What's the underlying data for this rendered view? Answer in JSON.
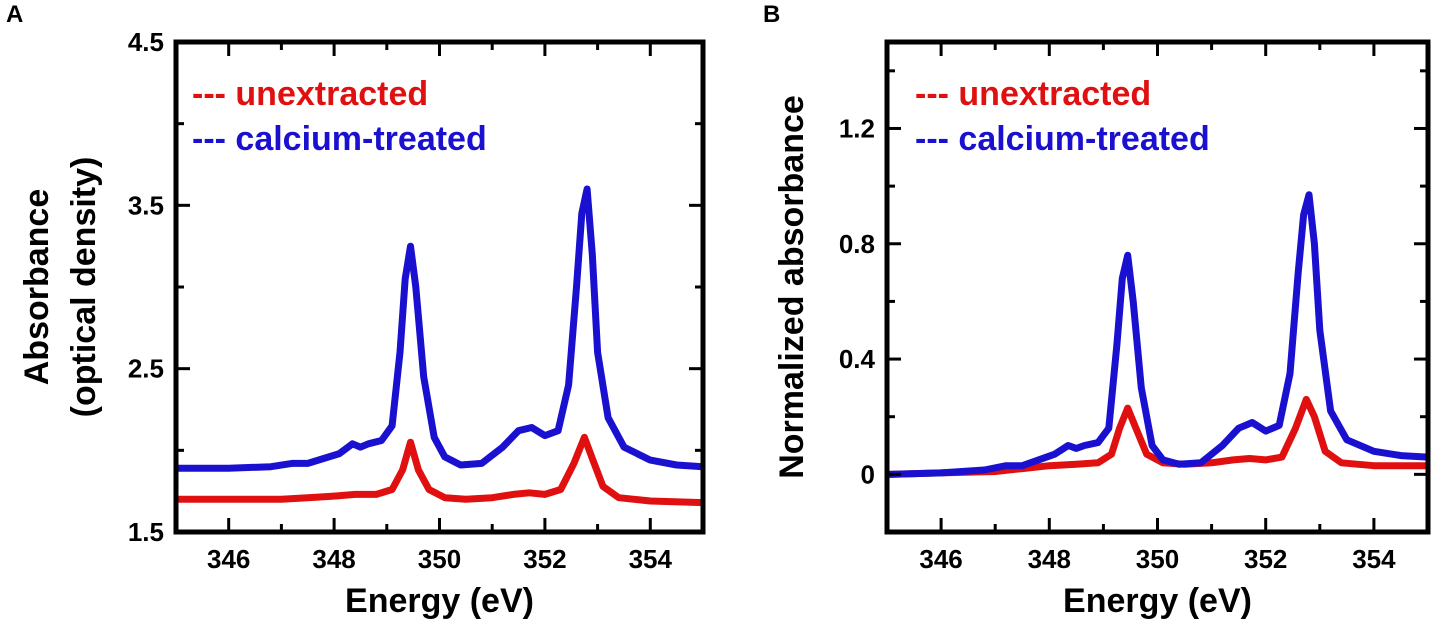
{
  "chart_data": [
    {
      "panel": "A",
      "type": "line",
      "xlabel": "Energy (eV)",
      "ylabel_lines": [
        "Absorbance",
        "(optical density)"
      ],
      "xlim": [
        345,
        355
      ],
      "ylim": [
        1.5,
        4.5
      ],
      "xticks": [
        346,
        348,
        350,
        352,
        354
      ],
      "xtick_labels": [
        "346",
        "348",
        "350",
        "352",
        "354"
      ],
      "yticks": [
        1.5,
        2.5,
        3.5,
        4.5
      ],
      "ytick_labels": [
        "1.5",
        "2.5",
        "3.5",
        "4.5"
      ],
      "grid": false,
      "legend_position": "top-left",
      "series": [
        {
          "name": "unextracted",
          "legend_label": "--- unextracted",
          "color": "#e01010",
          "x": [
            345,
            346,
            347,
            347.5,
            348,
            348.4,
            348.8,
            349.1,
            349.3,
            349.45,
            349.6,
            349.8,
            350.1,
            350.5,
            351,
            351.4,
            351.7,
            352.0,
            352.3,
            352.55,
            352.75,
            352.9,
            353.1,
            353.4,
            354,
            355
          ],
          "values": [
            1.7,
            1.7,
            1.7,
            1.71,
            1.72,
            1.73,
            1.73,
            1.76,
            1.88,
            2.05,
            1.88,
            1.76,
            1.71,
            1.7,
            1.71,
            1.73,
            1.74,
            1.73,
            1.76,
            1.92,
            2.08,
            1.95,
            1.78,
            1.71,
            1.69,
            1.68
          ]
        },
        {
          "name": "calcium-treated",
          "legend_label": "--- calcium-treated",
          "color": "#1a10d0",
          "x": [
            345,
            346,
            346.8,
            347.2,
            347.5,
            347.8,
            348.1,
            348.35,
            348.5,
            348.65,
            348.9,
            349.1,
            349.25,
            349.35,
            349.45,
            349.55,
            349.7,
            349.9,
            350.1,
            350.4,
            350.8,
            351.2,
            351.5,
            351.75,
            352.0,
            352.25,
            352.45,
            352.6,
            352.7,
            352.8,
            352.9,
            353.0,
            353.2,
            353.5,
            354,
            354.5,
            355
          ],
          "values": [
            1.89,
            1.89,
            1.9,
            1.92,
            1.92,
            1.95,
            1.98,
            2.04,
            2.02,
            2.04,
            2.06,
            2.15,
            2.6,
            3.05,
            3.25,
            3.0,
            2.45,
            2.08,
            1.96,
            1.91,
            1.92,
            2.02,
            2.12,
            2.14,
            2.09,
            2.12,
            2.4,
            3.0,
            3.45,
            3.6,
            3.2,
            2.6,
            2.2,
            2.02,
            1.94,
            1.91,
            1.9
          ]
        }
      ]
    },
    {
      "panel": "B",
      "type": "line",
      "xlabel": "Energy (eV)",
      "ylabel_lines": [
        "Normalized absorbance"
      ],
      "xlim": [
        345,
        355
      ],
      "ylim": [
        -0.2,
        1.5
      ],
      "xticks": [
        346,
        348,
        350,
        352,
        354
      ],
      "xtick_labels": [
        "346",
        "348",
        "350",
        "352",
        "354"
      ],
      "yticks": [
        0,
        0.4,
        0.8,
        1.2
      ],
      "ytick_labels": [
        "0",
        "0.4",
        "0.8",
        "1.2"
      ],
      "grid": false,
      "legend_position": "top-left",
      "series": [
        {
          "name": "unextracted",
          "legend_label": "--- unextracted",
          "color": "#e01010",
          "x": [
            345,
            346,
            347,
            347.5,
            348,
            348.5,
            348.9,
            349.15,
            349.3,
            349.45,
            349.6,
            349.8,
            350.1,
            350.5,
            351,
            351.4,
            351.7,
            352.0,
            352.3,
            352.55,
            352.75,
            352.9,
            353.1,
            353.4,
            354,
            355
          ],
          "values": [
            0.0,
            0.005,
            0.01,
            0.02,
            0.03,
            0.035,
            0.04,
            0.07,
            0.16,
            0.23,
            0.16,
            0.07,
            0.04,
            0.035,
            0.04,
            0.05,
            0.055,
            0.05,
            0.06,
            0.16,
            0.26,
            0.2,
            0.08,
            0.04,
            0.03,
            0.03
          ]
        },
        {
          "name": "calcium-treated",
          "legend_label": "--- calcium-treated",
          "color": "#1a10d0",
          "x": [
            345,
            346,
            346.8,
            347.2,
            347.5,
            347.8,
            348.1,
            348.35,
            348.5,
            348.65,
            348.9,
            349.1,
            349.25,
            349.35,
            349.45,
            349.55,
            349.7,
            349.9,
            350.1,
            350.4,
            350.8,
            351.2,
            351.5,
            351.75,
            352.0,
            352.25,
            352.45,
            352.6,
            352.7,
            352.8,
            352.9,
            353.0,
            353.2,
            353.5,
            354,
            354.5,
            355
          ],
          "values": [
            0.0,
            0.005,
            0.015,
            0.03,
            0.03,
            0.05,
            0.07,
            0.1,
            0.09,
            0.1,
            0.11,
            0.16,
            0.45,
            0.68,
            0.76,
            0.6,
            0.3,
            0.1,
            0.05,
            0.035,
            0.04,
            0.1,
            0.16,
            0.18,
            0.15,
            0.17,
            0.35,
            0.7,
            0.9,
            0.97,
            0.8,
            0.5,
            0.22,
            0.12,
            0.08,
            0.065,
            0.06
          ]
        }
      ]
    }
  ]
}
